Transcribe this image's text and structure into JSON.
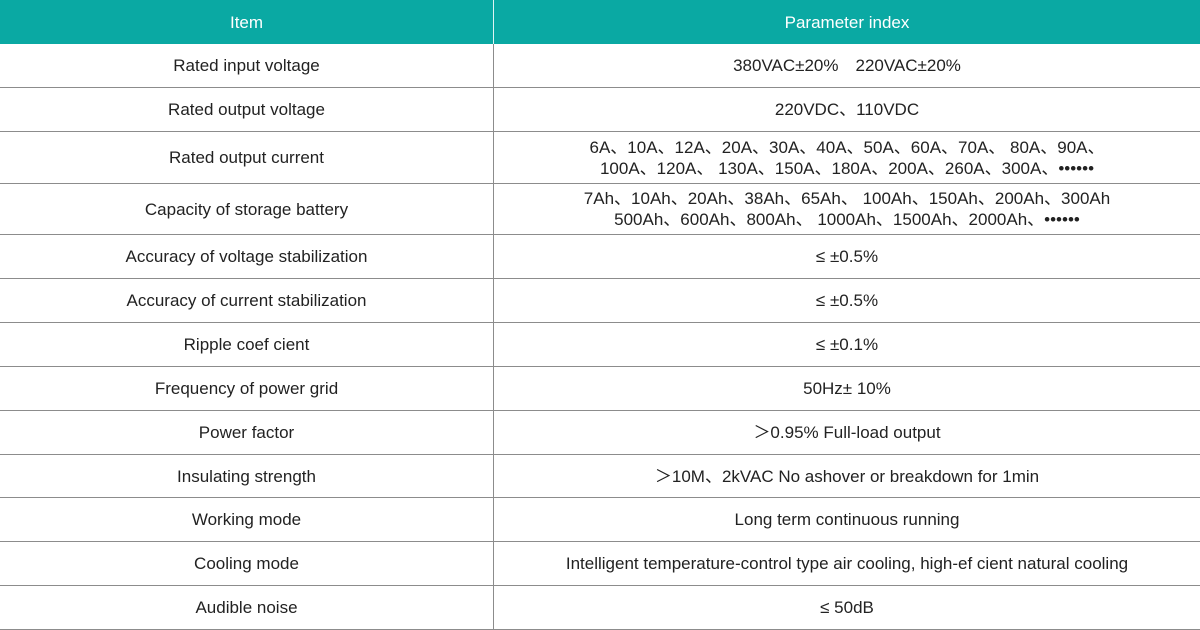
{
  "table": {
    "header": [
      "Item",
      "Parameter index"
    ],
    "rows": [
      [
        "Rated input voltage",
        "380VAC±20%　220VAC±20%"
      ],
      [
        "Rated output voltage",
        "220VDC、110VDC"
      ],
      [
        "Rated output current",
        [
          "6A、10A、12A、20A、30A、40A、50A、60A、70A、 80A、90A、",
          "100A、120A、 130A、150A、180A、200A、260A、300A、••••••"
        ]
      ],
      [
        "Capacity of storage battery",
        [
          "7Ah、10Ah、20Ah、38Ah、65Ah、 100Ah、150Ah、200Ah、300Ah",
          "500Ah、600Ah、800Ah、 1000Ah、1500Ah、2000Ah、••••••"
        ]
      ],
      [
        "Accuracy of voltage stabilization",
        "≤ ±0.5%"
      ],
      [
        "Accuracy of current stabilization",
        "≤ ±0.5%"
      ],
      [
        "Ripple coef cient",
        "≤ ±0.1%"
      ],
      [
        "Frequency of power grid",
        "50Hz± 10%"
      ],
      [
        "Power factor",
        "＞0.95% Full-load output"
      ],
      [
        "Insulating strength",
        "＞10M、2kVAC No ashover or breakdown for 1min"
      ],
      [
        "Working mode",
        "Long term continuous running"
      ],
      [
        "Cooling mode",
        "Intelligent temperature-control type air cooling, high-ef cient natural cooling"
      ],
      [
        "Audible noise",
        "≤ 50dB"
      ]
    ]
  }
}
